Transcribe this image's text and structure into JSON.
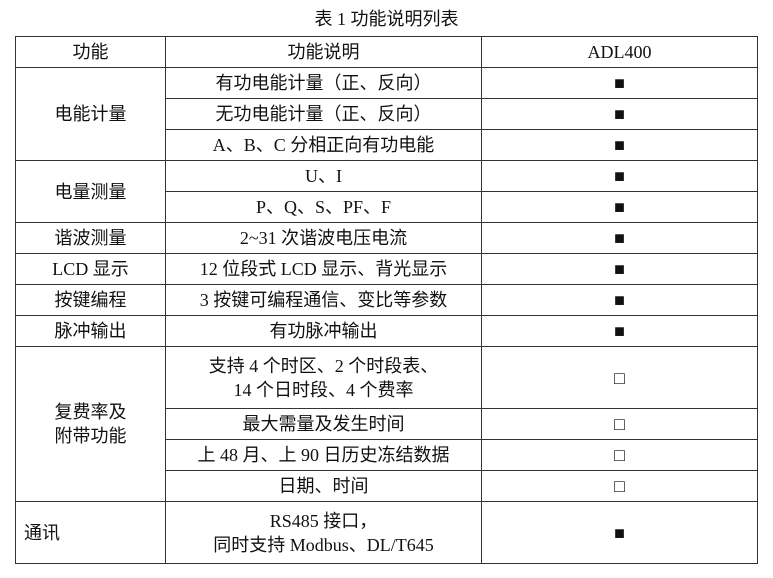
{
  "title": "表 1  功能说明列表",
  "headers": [
    "功能",
    "功能说明",
    "ADL400"
  ],
  "groups": [
    {
      "name": "电能计量",
      "rows": [
        {
          "desc": "有功电能计量（正、反向）",
          "mark": "■"
        },
        {
          "desc": "无功电能计量（正、反向）",
          "mark": "■"
        },
        {
          "desc": "A、B、C 分相正向有功电能",
          "mark": "■"
        }
      ]
    },
    {
      "name": "电量测量",
      "rows": [
        {
          "desc": "U、I",
          "mark": "■"
        },
        {
          "desc": "P、Q、S、PF、F",
          "mark": "■"
        }
      ]
    },
    {
      "name": "谐波测量",
      "rows": [
        {
          "desc": "2~31 次谐波电压电流",
          "mark": "■"
        }
      ]
    },
    {
      "name": "LCD 显示",
      "rows": [
        {
          "desc": "12 位段式 LCD 显示、背光显示",
          "mark": "■"
        }
      ]
    },
    {
      "name": "按键编程",
      "rows": [
        {
          "desc": "3 按键可编程通信、变比等参数",
          "mark": "■"
        }
      ]
    },
    {
      "name": "脉冲输出",
      "rows": [
        {
          "desc": "有功脉冲输出",
          "mark": "■"
        }
      ]
    },
    {
      "name_line1": "复费率及",
      "name_line2": "附带功能",
      "rows": [
        {
          "desc_line1": "支持 4 个时区、2 个时段表、",
          "desc_line2": "14 个日时段、4 个费率",
          "mark": "□"
        },
        {
          "desc": "最大需量及发生时间",
          "mark": "□"
        },
        {
          "desc": "上 48 月、上 90 日历史冻结数据",
          "mark": "□"
        },
        {
          "desc": "日期、时间",
          "mark": "□"
        }
      ]
    },
    {
      "name": "通讯",
      "rows": [
        {
          "desc_line1": "RS485 接口，",
          "desc_line2": "同时支持 Modbus、DL/T645",
          "mark": "■"
        }
      ]
    }
  ]
}
